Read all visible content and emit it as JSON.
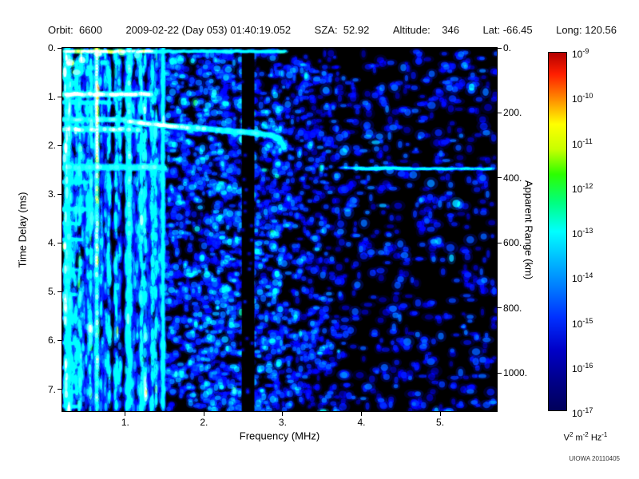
{
  "header": {
    "fields": [
      {
        "name": "orbit",
        "text": "Orbit:  6600"
      },
      {
        "name": "datetime",
        "text": "2009-02-22 (Day 053) 01:40:19.052"
      },
      {
        "name": "sza",
        "text": "SZA:  52.92"
      },
      {
        "name": "altitude",
        "text": "Altitude:    346"
      },
      {
        "name": "latitude",
        "text": "Lat: -66.45"
      },
      {
        "name": "longitude",
        "text": "Long: 120.56"
      }
    ]
  },
  "footer": {
    "credit": "UIOWA 20110405"
  },
  "chart_data": {
    "type": "heatmap",
    "subtype": "radar-sounder-ionogram-spectrogram",
    "xlabel": "Frequency (MHz)",
    "ylabel_left": "Time Delay (ms)",
    "ylabel_right": "Apparent Range (km)",
    "x_range": [
      0.2,
      5.72
    ],
    "y_range": [
      0,
      7.45
    ],
    "range_km_per_ms": 150,
    "x_ticks": [
      {
        "v": 1,
        "label": "1."
      },
      {
        "v": 2,
        "label": "2."
      },
      {
        "v": 3,
        "label": "3."
      },
      {
        "v": 4,
        "label": "4."
      },
      {
        "v": 5,
        "label": "5."
      }
    ],
    "y_ticks_left": [
      {
        "v": 0,
        "label": "0."
      },
      {
        "v": 1,
        "label": "1."
      },
      {
        "v": 2,
        "label": "2."
      },
      {
        "v": 3,
        "label": "3."
      },
      {
        "v": 4,
        "label": "4."
      },
      {
        "v": 5,
        "label": "5."
      },
      {
        "v": 6,
        "label": "6."
      },
      {
        "v": 7,
        "label": "7."
      }
    ],
    "y_ticks_right": [
      {
        "km": 0,
        "label": "0."
      },
      {
        "km": 200,
        "label": "200."
      },
      {
        "km": 400,
        "label": "400."
      },
      {
        "km": 600,
        "label": "600."
      },
      {
        "km": 800,
        "label": "800."
      },
      {
        "km": 1000,
        "label": "1000."
      }
    ],
    "colorbar": {
      "exponents": [
        "-9",
        "-10",
        "-11",
        "-12",
        "-13",
        "-14",
        "-15",
        "-16",
        "-17"
      ],
      "scale_max": "1e-9",
      "scale_min": "1e-17",
      "unit_parts": [
        [
          "V",
          false
        ],
        [
          "2",
          true
        ],
        [
          " m",
          false
        ],
        [
          "-2",
          true
        ],
        [
          " Hz",
          false
        ],
        [
          "-1",
          true
        ]
      ]
    },
    "colormap": [
      [
        0.0,
        "#00005a"
      ],
      [
        0.08,
        "#000088"
      ],
      [
        0.17,
        "#0000c8"
      ],
      [
        0.26,
        "#0030ff"
      ],
      [
        0.34,
        "#0078ff"
      ],
      [
        0.42,
        "#00baff"
      ],
      [
        0.5,
        "#00ffff"
      ],
      [
        0.58,
        "#00ff80"
      ],
      [
        0.66,
        "#2cff00"
      ],
      [
        0.73,
        "#c8ff00"
      ],
      [
        0.8,
        "#ffff00"
      ],
      [
        0.87,
        "#ff8c00"
      ],
      [
        0.94,
        "#ff1e00"
      ],
      [
        1.0,
        "#b40000"
      ]
    ],
    "features": {
      "vertical_lines": [
        {
          "f": 0.27,
          "v": 0.6,
          "w": 5,
          "fade": 0.15
        },
        {
          "f": 0.64,
          "v": 0.85,
          "w": 3,
          "fade": 0.3
        },
        {
          "f": 1.05,
          "v": 0.66,
          "w": 3,
          "fade": 0.25
        },
        {
          "f": 1.48,
          "v": 0.5,
          "w": 2.5,
          "fade": 0.1
        }
      ],
      "horizontal_bands": [
        {
          "t": 0.07,
          "f0": 0.25,
          "f1": 1.35,
          "v": 0.8,
          "th": 3.5
        },
        {
          "t": 0.07,
          "f0": 1.35,
          "f1": 3.05,
          "v": 0.55,
          "th": 3
        },
        {
          "t": 0.95,
          "f0": 0.22,
          "f1": 1.34,
          "v": 0.78,
          "th": 5
        },
        {
          "t": 1.12,
          "f0": 0.22,
          "f1": 0.8,
          "v": 0.5,
          "th": 4
        },
        {
          "t": 1.47,
          "f0": 0.22,
          "f1": 1.0,
          "v": 0.6,
          "th": 4.5
        },
        {
          "t": 1.67,
          "f0": 0.22,
          "f1": 1.2,
          "v": 0.68,
          "th": 5
        },
        {
          "t": 2.45,
          "f0": 0.22,
          "f1": 1.5,
          "v": 0.6,
          "th": 6
        },
        {
          "t": 2.75,
          "f0": 0.22,
          "f1": 0.55,
          "v": 0.45,
          "th": 4
        },
        {
          "t": 3.31,
          "f0": 0.22,
          "f1": 0.5,
          "v": 0.5,
          "th": 4
        },
        {
          "t": 3.6,
          "f0": 0.22,
          "f1": 0.42,
          "v": 0.4,
          "th": 4
        },
        {
          "t": 3.93,
          "f0": 0.22,
          "f1": 0.45,
          "v": 0.45,
          "th": 4
        },
        {
          "t": 4.55,
          "f0": 0.22,
          "f1": 0.42,
          "v": 0.42,
          "th": 4
        },
        {
          "t": 5.05,
          "f0": 0.22,
          "f1": 0.4,
          "v": 0.42,
          "th": 4
        },
        {
          "t": 5.55,
          "f0": 0.22,
          "f1": 0.4,
          "v": 0.4,
          "th": 4
        },
        {
          "t": 6.05,
          "f0": 0.22,
          "f1": 0.4,
          "v": 0.42,
          "th": 4
        },
        {
          "t": 6.55,
          "f0": 0.22,
          "f1": 0.4,
          "v": 0.4,
          "th": 4
        },
        {
          "t": 7.05,
          "f0": 0.22,
          "f1": 0.4,
          "v": 0.42,
          "th": 4
        },
        {
          "t": 7.35,
          "f0": 0.22,
          "f1": 0.38,
          "v": 0.4,
          "th": 4
        },
        {
          "t": 2.46,
          "f0": 3.75,
          "f1": 3.97,
          "v": 0.32,
          "th": 3
        },
        {
          "t": 2.47,
          "f0": 3.97,
          "f1": 4.62,
          "v": 0.5,
          "th": 3.5
        },
        {
          "t": 2.48,
          "f0": 4.62,
          "f1": 5.66,
          "v": 0.42,
          "th": 3
        }
      ],
      "ionosphere_trace": {
        "th": 5,
        "points": [
          [
            1.0,
            1.5,
            0.68
          ],
          [
            1.2,
            1.54,
            0.73
          ],
          [
            1.45,
            1.58,
            0.72
          ],
          [
            1.7,
            1.62,
            0.68
          ],
          [
            2.0,
            1.66,
            0.62
          ],
          [
            2.3,
            1.7,
            0.6
          ],
          [
            2.6,
            1.74,
            0.6
          ],
          [
            2.85,
            1.79,
            0.56
          ],
          [
            2.96,
            1.86,
            0.5
          ],
          [
            3.0,
            1.98,
            0.45
          ],
          [
            3.03,
            2.1,
            0.4
          ]
        ]
      },
      "spots": [
        {
          "f": 0.3,
          "t": 0.3,
          "v": 0.85,
          "rx": 5,
          "ry": 4
        },
        {
          "f": 0.45,
          "t": 0.25,
          "v": 0.8,
          "rx": 4,
          "ry": 4
        },
        {
          "f": 0.38,
          "t": 0.5,
          "v": 0.75,
          "rx": 5,
          "ry": 3.5
        },
        {
          "f": 0.55,
          "t": 0.4,
          "v": 0.65,
          "rx": 4,
          "ry": 3
        },
        {
          "f": 0.72,
          "t": 0.3,
          "v": 0.6,
          "rx": 4,
          "ry": 3
        },
        {
          "f": 0.33,
          "t": 0.72,
          "v": 0.6,
          "rx": 4,
          "ry": 3
        },
        {
          "f": 0.65,
          "t": 0.12,
          "v": 0.85,
          "rx": 5,
          "ry": 3
        },
        {
          "f": 0.95,
          "t": 0.1,
          "v": 0.75,
          "rx": 4,
          "ry": 3
        },
        {
          "f": 1.15,
          "t": 0.15,
          "v": 0.7,
          "rx": 3.5,
          "ry": 4
        },
        {
          "f": 1.05,
          "t": 0.3,
          "v": 0.55,
          "rx": 4,
          "ry": 3
        }
      ],
      "black_band": {
        "f0": 2.48,
        "f1": 2.64
      }
    },
    "noise": {
      "seed": 42,
      "regions": [
        {
          "f0": 0.22,
          "f1": 1.5,
          "count": 2800,
          "vmin": 0.2,
          "vmax": 0.55,
          "rx": 1.6,
          "ry": 6,
          "vertical": true,
          "ncols": 28
        },
        {
          "f0": 1.5,
          "f1": 3.0,
          "count": 1700,
          "vmin": 0.15,
          "vmax": 0.46,
          "rx": 3,
          "ry": 3
        },
        {
          "f0": 3.0,
          "f1": 3.72,
          "count": 520,
          "vmin": 0.13,
          "vmax": 0.4,
          "rx": 3,
          "ry": 3
        },
        {
          "f0": 3.72,
          "f1": 5.72,
          "count": 600,
          "vmin": 0.12,
          "vmax": 0.38,
          "rx": 3.5,
          "ry": 3.2
        }
      ]
    }
  }
}
